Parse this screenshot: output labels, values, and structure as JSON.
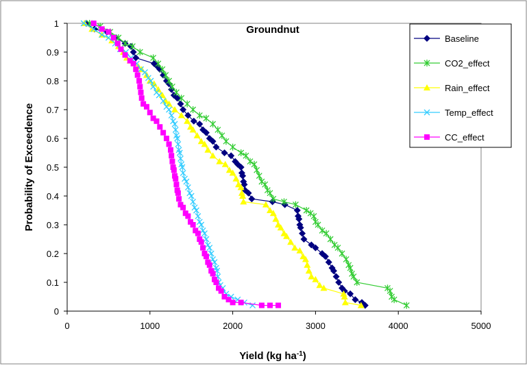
{
  "chart_data": {
    "type": "line",
    "title": "Groundnut",
    "xlabel_main": "Yield (kg ha",
    "xlabel_sup": "-1",
    "xlabel_end": ")",
    "ylabel": "Probability of Exceedence",
    "xlim": [
      0,
      5000
    ],
    "ylim": [
      0,
      1
    ],
    "x_ticks": [
      0,
      1000,
      2000,
      3000,
      4000,
      5000
    ],
    "y_ticks": [
      0,
      0.1,
      0.2,
      0.3,
      0.4,
      0.5,
      0.6,
      0.7,
      0.8,
      0.9,
      1
    ],
    "grid": false,
    "legend_position": "top-right",
    "series": [
      {
        "name": "Baseline",
        "color": "#000080",
        "marker": "diamond",
        "points": [
          [
            230,
            1.0
          ],
          [
            330,
            0.98
          ],
          [
            480,
            0.97
          ],
          [
            590,
            0.95
          ],
          [
            700,
            0.93
          ],
          [
            770,
            0.92
          ],
          [
            800,
            0.9
          ],
          [
            830,
            0.88
          ],
          [
            1050,
            0.86
          ],
          [
            1090,
            0.85
          ],
          [
            1120,
            0.84
          ],
          [
            1160,
            0.82
          ],
          [
            1200,
            0.8
          ],
          [
            1230,
            0.79
          ],
          [
            1260,
            0.77
          ],
          [
            1290,
            0.75
          ],
          [
            1330,
            0.74
          ],
          [
            1370,
            0.72
          ],
          [
            1400,
            0.7
          ],
          [
            1460,
            0.68
          ],
          [
            1530,
            0.66
          ],
          [
            1600,
            0.65
          ],
          [
            1640,
            0.63
          ],
          [
            1680,
            0.62
          ],
          [
            1720,
            0.6
          ],
          [
            1760,
            0.59
          ],
          [
            1800,
            0.57
          ],
          [
            1900,
            0.55
          ],
          [
            1980,
            0.54
          ],
          [
            2030,
            0.52
          ],
          [
            2060,
            0.51
          ],
          [
            2100,
            0.5
          ],
          [
            2110,
            0.48
          ],
          [
            2120,
            0.47
          ],
          [
            2130,
            0.45
          ],
          [
            2140,
            0.44
          ],
          [
            2150,
            0.42
          ],
          [
            2190,
            0.41
          ],
          [
            2230,
            0.39
          ],
          [
            2480,
            0.38
          ],
          [
            2630,
            0.37
          ],
          [
            2780,
            0.35
          ],
          [
            2790,
            0.33
          ],
          [
            2800,
            0.32
          ],
          [
            2810,
            0.3
          ],
          [
            2820,
            0.29
          ],
          [
            2840,
            0.27
          ],
          [
            2860,
            0.25
          ],
          [
            2950,
            0.23
          ],
          [
            3000,
            0.22
          ],
          [
            3080,
            0.2
          ],
          [
            3120,
            0.19
          ],
          [
            3160,
            0.17
          ],
          [
            3200,
            0.15
          ],
          [
            3220,
            0.14
          ],
          [
            3250,
            0.12
          ],
          [
            3280,
            0.1
          ],
          [
            3320,
            0.08
          ],
          [
            3350,
            0.07
          ],
          [
            3420,
            0.06
          ],
          [
            3480,
            0.04
          ],
          [
            3560,
            0.03
          ],
          [
            3600,
            0.02
          ]
        ]
      },
      {
        "name": "CO2_effect",
        "color": "#33cc33",
        "marker": "star",
        "points": [
          [
            270,
            1.0
          ],
          [
            400,
            0.99
          ],
          [
            520,
            0.97
          ],
          [
            620,
            0.95
          ],
          [
            700,
            0.93
          ],
          [
            790,
            0.92
          ],
          [
            880,
            0.9
          ],
          [
            1040,
            0.88
          ],
          [
            1100,
            0.86
          ],
          [
            1150,
            0.84
          ],
          [
            1190,
            0.82
          ],
          [
            1230,
            0.8
          ],
          [
            1270,
            0.78
          ],
          [
            1320,
            0.76
          ],
          [
            1380,
            0.74
          ],
          [
            1450,
            0.72
          ],
          [
            1520,
            0.7
          ],
          [
            1600,
            0.68
          ],
          [
            1680,
            0.67
          ],
          [
            1760,
            0.65
          ],
          [
            1820,
            0.63
          ],
          [
            1870,
            0.61
          ],
          [
            1920,
            0.59
          ],
          [
            2000,
            0.57
          ],
          [
            2100,
            0.55
          ],
          [
            2160,
            0.54
          ],
          [
            2210,
            0.52
          ],
          [
            2260,
            0.51
          ],
          [
            2290,
            0.49
          ],
          [
            2320,
            0.47
          ],
          [
            2350,
            0.45
          ],
          [
            2390,
            0.44
          ],
          [
            2420,
            0.42
          ],
          [
            2450,
            0.41
          ],
          [
            2490,
            0.39
          ],
          [
            2620,
            0.38
          ],
          [
            2760,
            0.37
          ],
          [
            2890,
            0.35
          ],
          [
            2940,
            0.34
          ],
          [
            2980,
            0.33
          ],
          [
            3000,
            0.31
          ],
          [
            3030,
            0.3
          ],
          [
            3080,
            0.28
          ],
          [
            3130,
            0.27
          ],
          [
            3180,
            0.25
          ],
          [
            3230,
            0.23
          ],
          [
            3270,
            0.22
          ],
          [
            3320,
            0.2
          ],
          [
            3370,
            0.18
          ],
          [
            3400,
            0.16
          ],
          [
            3420,
            0.15
          ],
          [
            3440,
            0.13
          ],
          [
            3460,
            0.12
          ],
          [
            3500,
            0.1
          ],
          [
            3870,
            0.08
          ],
          [
            3900,
            0.07
          ],
          [
            3920,
            0.05
          ],
          [
            3950,
            0.04
          ],
          [
            4100,
            0.02
          ]
        ]
      },
      {
        "name": "Rain_effect",
        "color": "#ffff00",
        "marker": "triangle",
        "points": [
          [
            210,
            1.0
          ],
          [
            300,
            0.98
          ],
          [
            420,
            0.96
          ],
          [
            540,
            0.94
          ],
          [
            620,
            0.92
          ],
          [
            680,
            0.9
          ],
          [
            720,
            0.88
          ],
          [
            760,
            0.87
          ],
          [
            860,
            0.85
          ],
          [
            900,
            0.84
          ],
          [
            960,
            0.82
          ],
          [
            1000,
            0.8
          ],
          [
            1050,
            0.79
          ],
          [
            1100,
            0.77
          ],
          [
            1150,
            0.75
          ],
          [
            1190,
            0.73
          ],
          [
            1230,
            0.72
          ],
          [
            1300,
            0.7
          ],
          [
            1380,
            0.68
          ],
          [
            1450,
            0.66
          ],
          [
            1490,
            0.64
          ],
          [
            1520,
            0.63
          ],
          [
            1570,
            0.61
          ],
          [
            1620,
            0.59
          ],
          [
            1660,
            0.58
          ],
          [
            1700,
            0.56
          ],
          [
            1760,
            0.54
          ],
          [
            1840,
            0.52
          ],
          [
            1910,
            0.51
          ],
          [
            1960,
            0.49
          ],
          [
            2000,
            0.48
          ],
          [
            2040,
            0.46
          ],
          [
            2070,
            0.44
          ],
          [
            2100,
            0.43
          ],
          [
            2110,
            0.41
          ],
          [
            2120,
            0.4
          ],
          [
            2130,
            0.38
          ],
          [
            2400,
            0.37
          ],
          [
            2450,
            0.35
          ],
          [
            2490,
            0.34
          ],
          [
            2520,
            0.32
          ],
          [
            2550,
            0.3
          ],
          [
            2580,
            0.29
          ],
          [
            2620,
            0.27
          ],
          [
            2650,
            0.26
          ],
          [
            2700,
            0.24
          ],
          [
            2750,
            0.22
          ],
          [
            2810,
            0.21
          ],
          [
            2850,
            0.19
          ],
          [
            2880,
            0.18
          ],
          [
            2900,
            0.16
          ],
          [
            2920,
            0.14
          ],
          [
            2950,
            0.12
          ],
          [
            3000,
            0.11
          ],
          [
            3050,
            0.09
          ],
          [
            3100,
            0.08
          ],
          [
            3340,
            0.06
          ],
          [
            3350,
            0.05
          ],
          [
            3360,
            0.03
          ],
          [
            3550,
            0.02
          ]
        ]
      },
      {
        "name": "Temp_effect",
        "color": "#33ccff",
        "marker": "x",
        "points": [
          [
            200,
            1.0
          ],
          [
            320,
            0.98
          ],
          [
            420,
            0.96
          ],
          [
            500,
            0.95
          ],
          [
            580,
            0.93
          ],
          [
            640,
            0.91
          ],
          [
            710,
            0.9
          ],
          [
            770,
            0.88
          ],
          [
            840,
            0.86
          ],
          [
            890,
            0.84
          ],
          [
            940,
            0.83
          ],
          [
            980,
            0.81
          ],
          [
            1010,
            0.8
          ],
          [
            1040,
            0.78
          ],
          [
            1080,
            0.76
          ],
          [
            1110,
            0.75
          ],
          [
            1160,
            0.73
          ],
          [
            1200,
            0.71
          ],
          [
            1230,
            0.7
          ],
          [
            1260,
            0.68
          ],
          [
            1280,
            0.66
          ],
          [
            1300,
            0.65
          ],
          [
            1310,
            0.63
          ],
          [
            1320,
            0.61
          ],
          [
            1330,
            0.6
          ],
          [
            1340,
            0.58
          ],
          [
            1350,
            0.56
          ],
          [
            1360,
            0.55
          ],
          [
            1370,
            0.53
          ],
          [
            1380,
            0.51
          ],
          [
            1390,
            0.5
          ],
          [
            1400,
            0.48
          ],
          [
            1420,
            0.46
          ],
          [
            1440,
            0.45
          ],
          [
            1460,
            0.43
          ],
          [
            1480,
            0.41
          ],
          [
            1500,
            0.4
          ],
          [
            1520,
            0.38
          ],
          [
            1540,
            0.36
          ],
          [
            1560,
            0.35
          ],
          [
            1580,
            0.33
          ],
          [
            1600,
            0.31
          ],
          [
            1620,
            0.3
          ],
          [
            1640,
            0.28
          ],
          [
            1660,
            0.27
          ],
          [
            1680,
            0.25
          ],
          [
            1700,
            0.23
          ],
          [
            1720,
            0.22
          ],
          [
            1740,
            0.2
          ],
          [
            1760,
            0.18
          ],
          [
            1780,
            0.17
          ],
          [
            1800,
            0.15
          ],
          [
            1810,
            0.14
          ],
          [
            1820,
            0.12
          ],
          [
            1830,
            0.1
          ],
          [
            1850,
            0.09
          ],
          [
            1880,
            0.08
          ],
          [
            1920,
            0.06
          ],
          [
            1980,
            0.05
          ],
          [
            2060,
            0.04
          ],
          [
            2140,
            0.03
          ],
          [
            2240,
            0.02
          ]
        ]
      },
      {
        "name": "CC_effect",
        "color": "#ff00ff",
        "marker": "square",
        "points": [
          [
            320,
            1.0
          ],
          [
            420,
            0.98
          ],
          [
            500,
            0.97
          ],
          [
            560,
            0.95
          ],
          [
            610,
            0.93
          ],
          [
            650,
            0.91
          ],
          [
            700,
            0.89
          ],
          [
            760,
            0.87
          ],
          [
            800,
            0.86
          ],
          [
            830,
            0.84
          ],
          [
            850,
            0.82
          ],
          [
            870,
            0.8
          ],
          [
            880,
            0.78
          ],
          [
            890,
            0.76
          ],
          [
            900,
            0.74
          ],
          [
            920,
            0.72
          ],
          [
            960,
            0.71
          ],
          [
            1000,
            0.69
          ],
          [
            1040,
            0.67
          ],
          [
            1080,
            0.66
          ],
          [
            1120,
            0.64
          ],
          [
            1160,
            0.62
          ],
          [
            1200,
            0.6
          ],
          [
            1230,
            0.58
          ],
          [
            1250,
            0.56
          ],
          [
            1260,
            0.54
          ],
          [
            1270,
            0.52
          ],
          [
            1280,
            0.5
          ],
          [
            1290,
            0.49
          ],
          [
            1300,
            0.47
          ],
          [
            1310,
            0.46
          ],
          [
            1320,
            0.44
          ],
          [
            1330,
            0.42
          ],
          [
            1340,
            0.41
          ],
          [
            1350,
            0.39
          ],
          [
            1370,
            0.37
          ],
          [
            1400,
            0.36
          ],
          [
            1430,
            0.34
          ],
          [
            1460,
            0.33
          ],
          [
            1490,
            0.31
          ],
          [
            1520,
            0.3
          ],
          [
            1550,
            0.28
          ],
          [
            1580,
            0.27
          ],
          [
            1600,
            0.25
          ],
          [
            1620,
            0.24
          ],
          [
            1640,
            0.22
          ],
          [
            1660,
            0.2
          ],
          [
            1680,
            0.19
          ],
          [
            1700,
            0.17
          ],
          [
            1720,
            0.16
          ],
          [
            1740,
            0.14
          ],
          [
            1760,
            0.13
          ],
          [
            1780,
            0.11
          ],
          [
            1800,
            0.1
          ],
          [
            1830,
            0.08
          ],
          [
            1860,
            0.07
          ],
          [
            1900,
            0.05
          ],
          [
            1950,
            0.04
          ],
          [
            2000,
            0.03
          ],
          [
            2100,
            0.03
          ],
          [
            2350,
            0.02
          ],
          [
            2450,
            0.02
          ],
          [
            2550,
            0.02
          ]
        ]
      }
    ]
  }
}
